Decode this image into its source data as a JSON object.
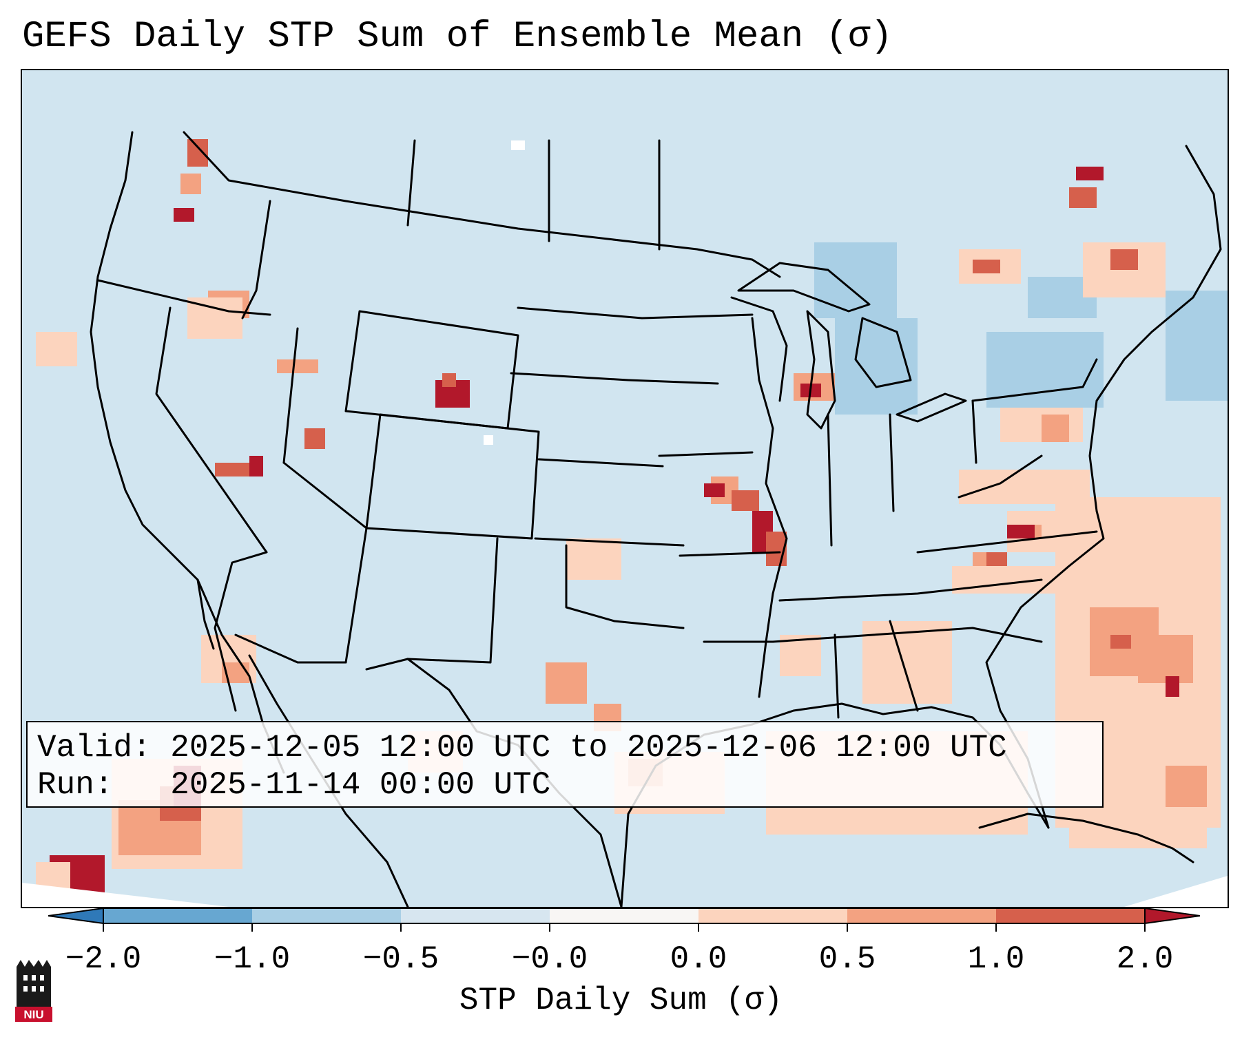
{
  "title": "GEFS Daily STP Sum of Ensemble Mean (σ)",
  "info": {
    "valid_label": "Valid:",
    "valid_value": "2025-12-05 12:00 UTC to 2025-12-06 12:00 UTC",
    "run_label": "Run:",
    "run_value": "2025-11-14 00:00 UTC"
  },
  "colorbar": {
    "label": "STP Daily Sum (σ)",
    "ticks": [
      "−2.0",
      "−1.0",
      "−0.5",
      "−0.0",
      "0.0",
      "0.5",
      "1.0",
      "2.0"
    ],
    "colors": [
      "#2f79b8",
      "#67a7d1",
      "#a9cfe5",
      "#d7e6f0",
      "#f8f6f4",
      "#fcd4be",
      "#f3a281",
      "#d6604c",
      "#b2182b"
    ]
  },
  "map": {
    "background_color": "#d1e5f0",
    "ocean_light_color": "#d3e6f1"
  },
  "logo": {
    "text": "NIU"
  }
}
